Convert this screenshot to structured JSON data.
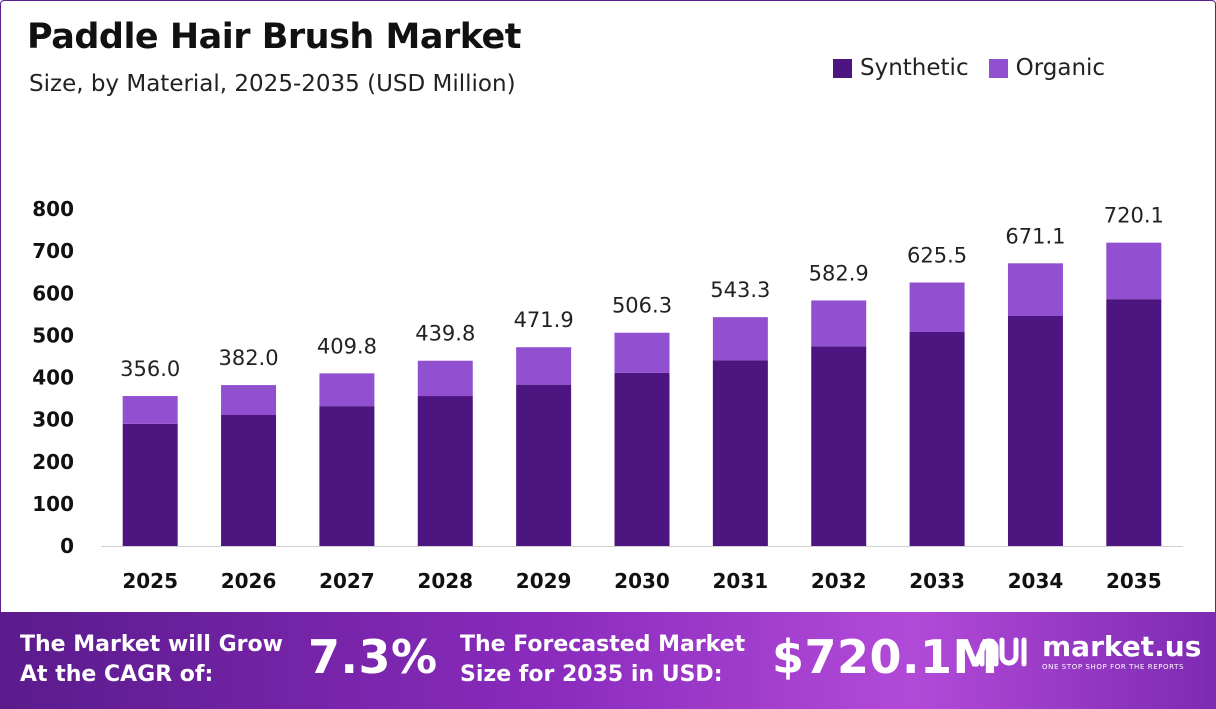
{
  "header": {
    "title": "Paddle Hair Brush Market",
    "subtitle": "Size, by Material, 2025-2035 (USD Million)"
  },
  "colors": {
    "synthetic": "#4d1580",
    "organic": "#9150d0",
    "frame": "#5b1f8f"
  },
  "chart_data": {
    "type": "bar",
    "stacked": true,
    "categories": [
      "2025",
      "2026",
      "2027",
      "2028",
      "2029",
      "2030",
      "2031",
      "2032",
      "2033",
      "2034",
      "2035"
    ],
    "series": [
      {
        "name": "Synthetic",
        "values": [
          290,
          311,
          332,
          356,
          383,
          411,
          441,
          474,
          508,
          546,
          586
        ]
      },
      {
        "name": "Organic",
        "values": [
          66,
          71,
          77.8,
          83.8,
          88.9,
          95.3,
          102.3,
          108.9,
          117.5,
          125.1,
          134.1
        ]
      }
    ],
    "totals": [
      "356.0",
      "382.0",
      "409.8",
      "439.8",
      "471.9",
      "506.3",
      "543.3",
      "582.9",
      "625.5",
      "671.1",
      "720.1"
    ],
    "yticks": [
      "0",
      "100",
      "200",
      "300",
      "400",
      "500",
      "600",
      "700",
      "800"
    ],
    "ylim": [
      0,
      800
    ],
    "grid": false,
    "legend": "top-right"
  },
  "banner": {
    "cagr_label_line1": "The Market will Grow",
    "cagr_label_line2": "At the CAGR of:",
    "cagr_value": "7.3%",
    "forecast_label_line1": "The Forecasted Market",
    "forecast_label_line2": "Size for 2035 in USD:",
    "forecast_value": "$720.1M",
    "logo_name": "market.us",
    "logo_tagline": "ONE STOP SHOP FOR THE REPORTS"
  }
}
